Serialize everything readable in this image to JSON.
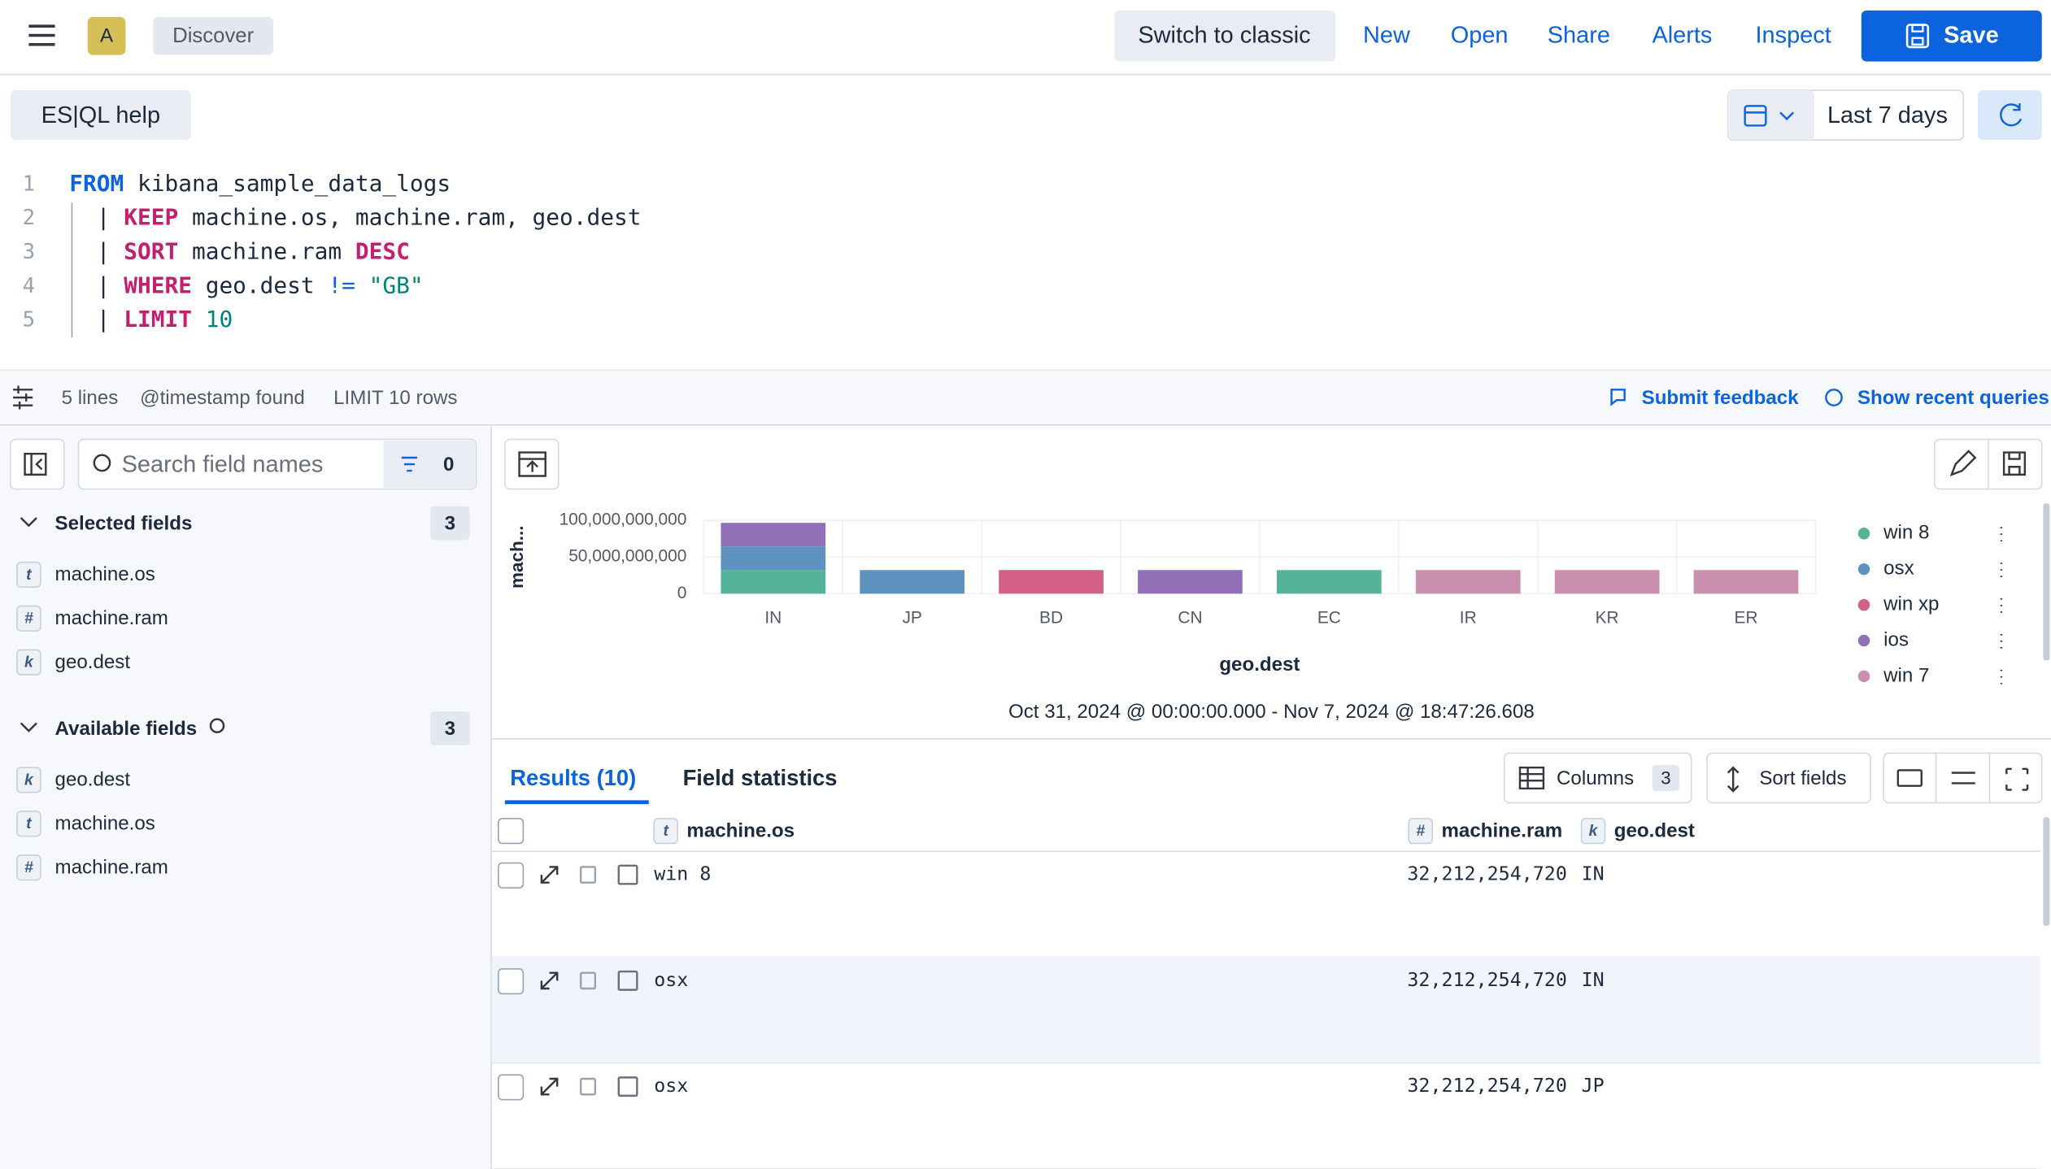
{
  "header": {
    "app_badge": "A",
    "breadcrumb": "Discover",
    "buttons": [
      "Switch to classic",
      "New",
      "Open",
      "Share",
      "Alerts",
      "Inspect"
    ],
    "save": "Save"
  },
  "editor": {
    "help": "ES|QL help",
    "time_range": "Last 7 days",
    "line_numbers": [
      1,
      2,
      3,
      4,
      5
    ],
    "lines": [
      [
        {
          "text": "FROM",
          "kind": "source"
        },
        {
          "text": " kibana_sample_data_logs",
          "kind": "plain"
        }
      ],
      [
        {
          "text": "  | ",
          "kind": "plain"
        },
        {
          "text": "KEEP",
          "kind": "command"
        },
        {
          "text": " machine.os, machine.ram, geo.dest",
          "kind": "plain"
        }
      ],
      [
        {
          "text": "  | ",
          "kind": "plain"
        },
        {
          "text": "SORT",
          "kind": "command"
        },
        {
          "text": " machine.ram ",
          "kind": "plain"
        },
        {
          "text": "DESC",
          "kind": "command"
        }
      ],
      [
        {
          "text": "  | ",
          "kind": "plain"
        },
        {
          "text": "WHERE",
          "kind": "command"
        },
        {
          "text": " geo.dest ",
          "kind": "plain"
        },
        {
          "text": "!=",
          "kind": "operator"
        },
        {
          "text": " ",
          "kind": "plain"
        },
        {
          "text": "\"GB\"",
          "kind": "literal"
        }
      ],
      [
        {
          "text": "  | ",
          "kind": "plain"
        },
        {
          "text": "LIMIT",
          "kind": "command"
        },
        {
          "text": " ",
          "kind": "plain"
        },
        {
          "text": "10",
          "kind": "literal"
        }
      ]
    ]
  },
  "status": {
    "items": [
      "5 lines",
      "@timestamp found",
      "LIMIT 10 rows"
    ],
    "feedback": "Submit feedback",
    "recent": "Show recent queries"
  },
  "sidebar": {
    "search_placeholder": "Search field names",
    "filter_count": "0",
    "selected": {
      "title": "Selected fields",
      "count": "3",
      "fields": [
        {
          "type": "t",
          "name": "machine.os"
        },
        {
          "type": "#",
          "name": "machine.ram"
        },
        {
          "type": "k",
          "name": "geo.dest"
        }
      ]
    },
    "available": {
      "title": "Available fields",
      "count": "3",
      "fields": [
        {
          "type": "k",
          "name": "geo.dest"
        },
        {
          "type": "t",
          "name": "machine.os"
        },
        {
          "type": "#",
          "name": "machine.ram"
        }
      ]
    }
  },
  "chart_data": {
    "type": "stacked-bar",
    "y_label": "mach...",
    "x_label": "geo.dest",
    "caption": "Oct 31, 2024 @ 00:00:00.000 - Nov 7, 2024 @ 18:47:26.608",
    "categories": [
      "IN",
      "JP",
      "BD",
      "CN",
      "EC",
      "IR",
      "KR",
      "ER"
    ],
    "ylim": [
      0,
      100000000000
    ],
    "yticks": [
      0,
      {
        "value": 50000000000,
        "label": "50,000,000,000"
      },
      {
        "value": 100000000000,
        "label": "100,000,000,000"
      }
    ],
    "grid": true,
    "legend": "right",
    "series": [
      {
        "name": "win 8",
        "color": "#54b399",
        "values": [
          32212254720,
          null,
          null,
          null,
          32212254720,
          null,
          null,
          null
        ]
      },
      {
        "name": "osx",
        "color": "#6092c0",
        "values": [
          32212254720,
          32212254720,
          null,
          null,
          null,
          null,
          null,
          null
        ]
      },
      {
        "name": "win xp",
        "color": "#d36086",
        "values": [
          null,
          null,
          32212254720,
          null,
          null,
          null,
          null,
          null
        ]
      },
      {
        "name": "ios",
        "color": "#9170b8",
        "values": [
          32212254720,
          null,
          null,
          32212254720,
          null,
          null,
          null,
          null
        ]
      },
      {
        "name": "win 7",
        "color": "#ca8eae",
        "values": [
          null,
          null,
          null,
          null,
          null,
          32212254720,
          32212254720,
          32212254720
        ]
      }
    ]
  },
  "results": {
    "tabs": [
      "Results (10)",
      "Field statistics"
    ],
    "columns_button": "Columns",
    "columns_count": "3",
    "sort_button": "Sort fields"
  },
  "table": {
    "columns": [
      {
        "type": "t",
        "name": "machine.os"
      },
      {
        "type": "#",
        "name": "machine.ram"
      },
      {
        "type": "k",
        "name": "geo.dest"
      }
    ],
    "rows": [
      [
        "win 8",
        "32,212,254,720",
        "IN"
      ],
      [
        "osx",
        "32,212,254,720",
        "IN"
      ],
      [
        "osx",
        "32,212,254,720",
        "JP"
      ]
    ]
  }
}
